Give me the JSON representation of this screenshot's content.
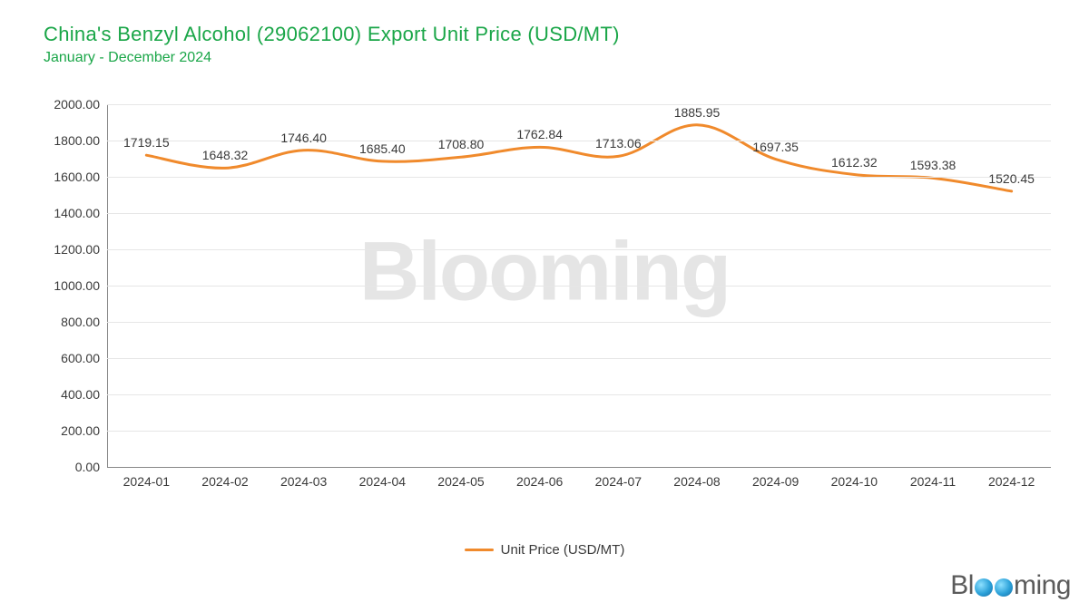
{
  "title": "China's Benzyl Alcohol (29062100) Export Unit Price (USD/MT)",
  "subtitle": "January - December 2024",
  "title_color": "#1aa648",
  "title_fontsize": 22,
  "subtitle_fontsize": 16,
  "chart": {
    "type": "line",
    "series_name": "Unit Price (USD/MT)",
    "line_color": "#f08a2c",
    "line_width": 3,
    "background_color": "#ffffff",
    "grid_color": "#e6e6e6",
    "axis_color": "#888888",
    "tick_label_color": "#3a3a3a",
    "tick_fontsize": 14,
    "data_label_fontsize": 14,
    "ylim": [
      0,
      2000
    ],
    "ytick_step": 200,
    "y_ticks": [
      "0.00",
      "200.00",
      "400.00",
      "600.00",
      "800.00",
      "1000.00",
      "1200.00",
      "1400.00",
      "1600.00",
      "1800.00",
      "2000.00"
    ],
    "categories": [
      "2024-01",
      "2024-02",
      "2024-03",
      "2024-04",
      "2024-05",
      "2024-06",
      "2024-07",
      "2024-08",
      "2024-09",
      "2024-10",
      "2024-11",
      "2024-12"
    ],
    "values": [
      1719.15,
      1648.32,
      1746.4,
      1685.4,
      1708.8,
      1762.84,
      1713.06,
      1885.95,
      1697.35,
      1612.32,
      1593.38,
      1520.45
    ],
    "value_labels": [
      "1719.15",
      "1648.32",
      "1746.40",
      "1685.40",
      "1708.80",
      "1762.84",
      "1713.06",
      "1885.95",
      "1697.35",
      "1612.32",
      "1593.38",
      "1520.45"
    ],
    "smooth": true
  },
  "legend": {
    "label": "Unit Price (USD/MT)",
    "color": "#f08a2c"
  },
  "watermark_text": "Blooming",
  "logo_text": "Blooming"
}
